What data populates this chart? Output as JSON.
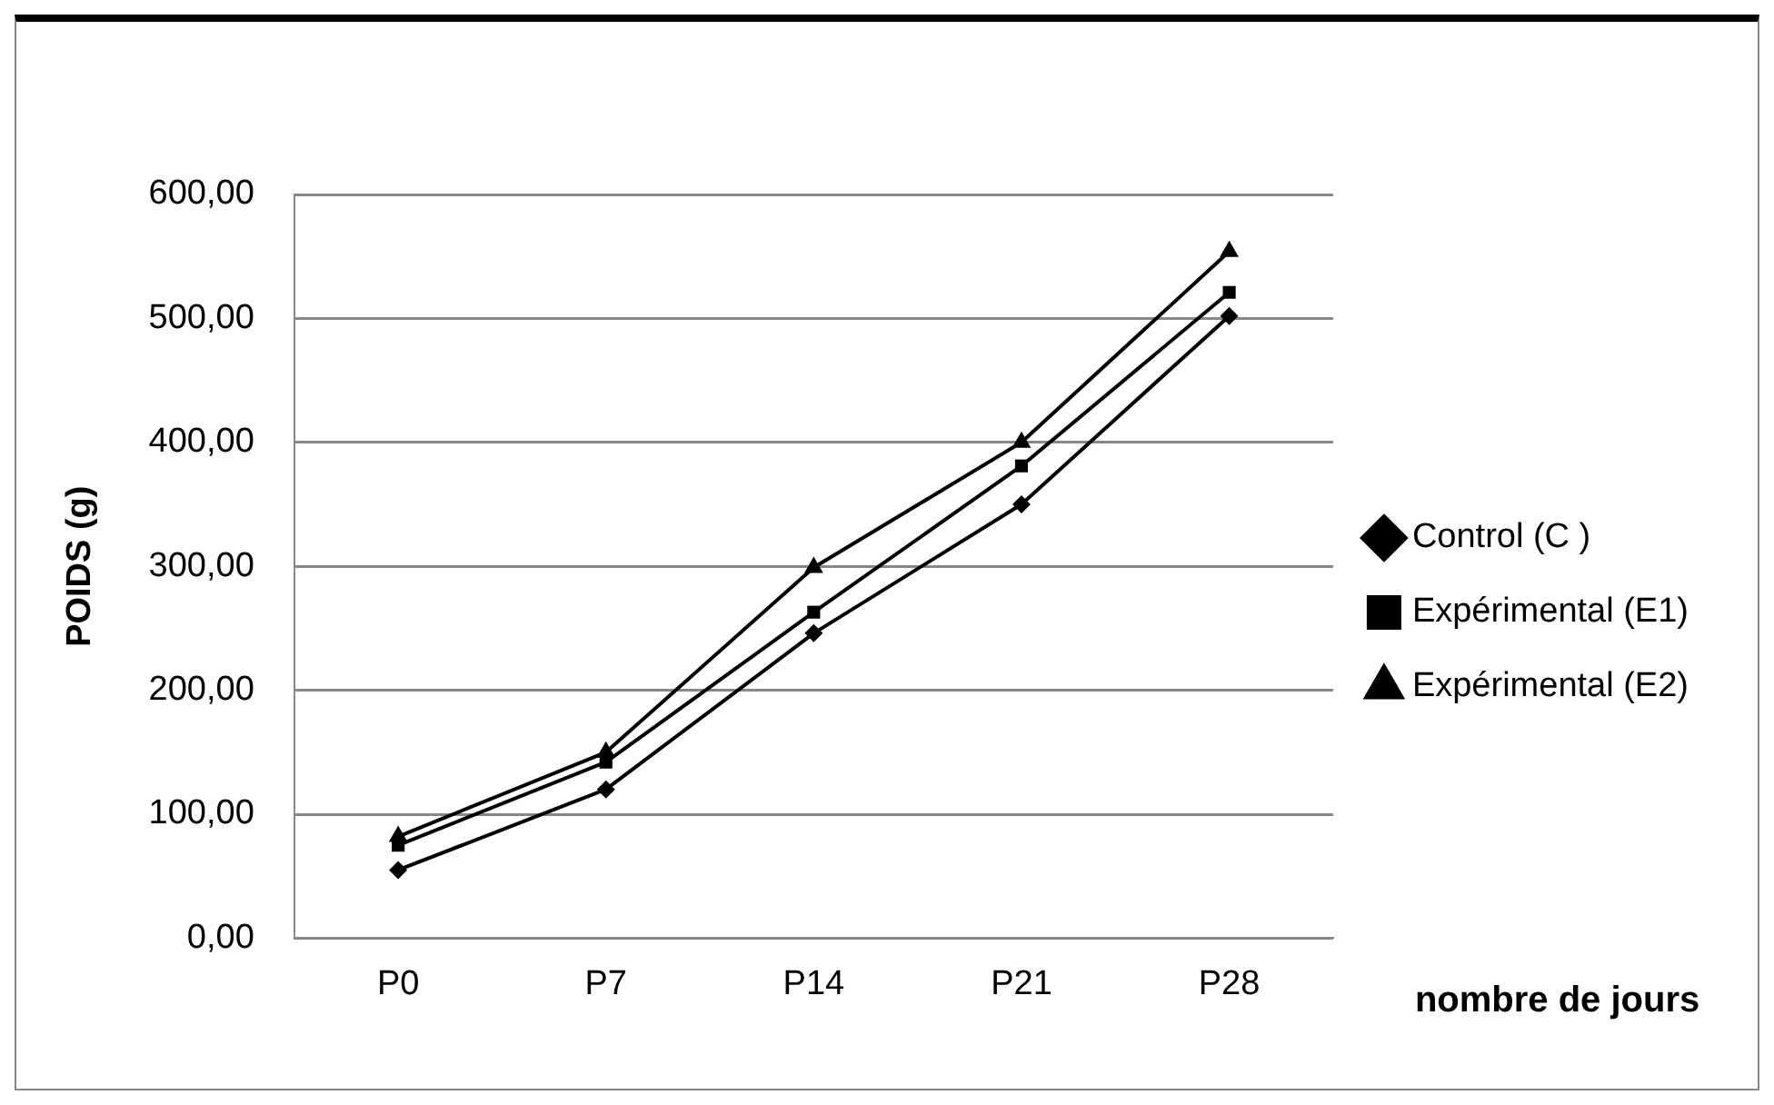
{
  "chart_data": {
    "type": "line",
    "xlabel": "nombre de jours",
    "ylabel": "POIDS (g)",
    "categories": [
      "P0",
      "P7",
      "P14",
      "P21",
      "P28"
    ],
    "series": [
      {
        "name": "Control (C )",
        "color": "#000000",
        "marker": "diamond",
        "values": [
          55,
          120,
          246,
          350,
          502
        ]
      },
      {
        "name": "Expérimental (E1)",
        "color": "#000000",
        "marker": "square",
        "values": [
          75,
          142,
          263,
          381,
          521
        ]
      },
      {
        "name": "Expérimental (E2)",
        "color": "#000000",
        "marker": "triangle",
        "values": [
          82,
          150,
          299,
          400,
          554
        ]
      }
    ],
    "ylim": [
      0,
      600
    ],
    "yticks": [
      {
        "value": 0,
        "label": "0,00"
      },
      {
        "value": 100,
        "label": "100,00"
      },
      {
        "value": 200,
        "label": "200,00"
      },
      {
        "value": 300,
        "label": "300,00"
      },
      {
        "value": 400,
        "label": "400,00"
      },
      {
        "value": 500,
        "label": "500,00"
      },
      {
        "value": 600,
        "label": "600,00"
      }
    ],
    "grid": "y",
    "legend": "right",
    "line_style": "solid"
  }
}
